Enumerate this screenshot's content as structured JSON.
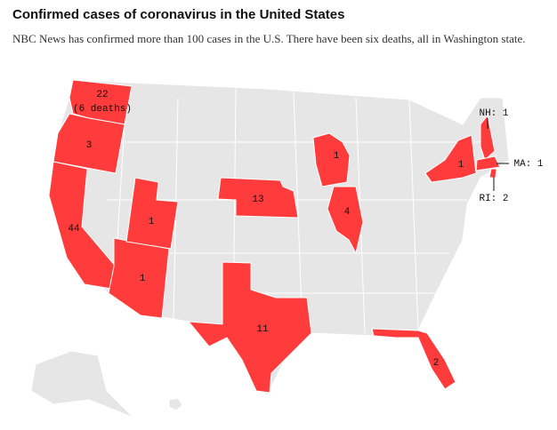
{
  "header": {
    "title": "Confirmed cases of coronavirus in the United States",
    "subtitle": "NBC News has confirmed more than 100 cases in the U.S. There have been six deaths, all in Washington state."
  },
  "map": {
    "labels": [
      "22",
      "(6 deaths)",
      "3",
      "44",
      "1",
      "1",
      "13",
      "11",
      "1",
      "4",
      "1",
      "2",
      "NH: 1",
      "MA: 1",
      "RI: 2"
    ]
  }
}
